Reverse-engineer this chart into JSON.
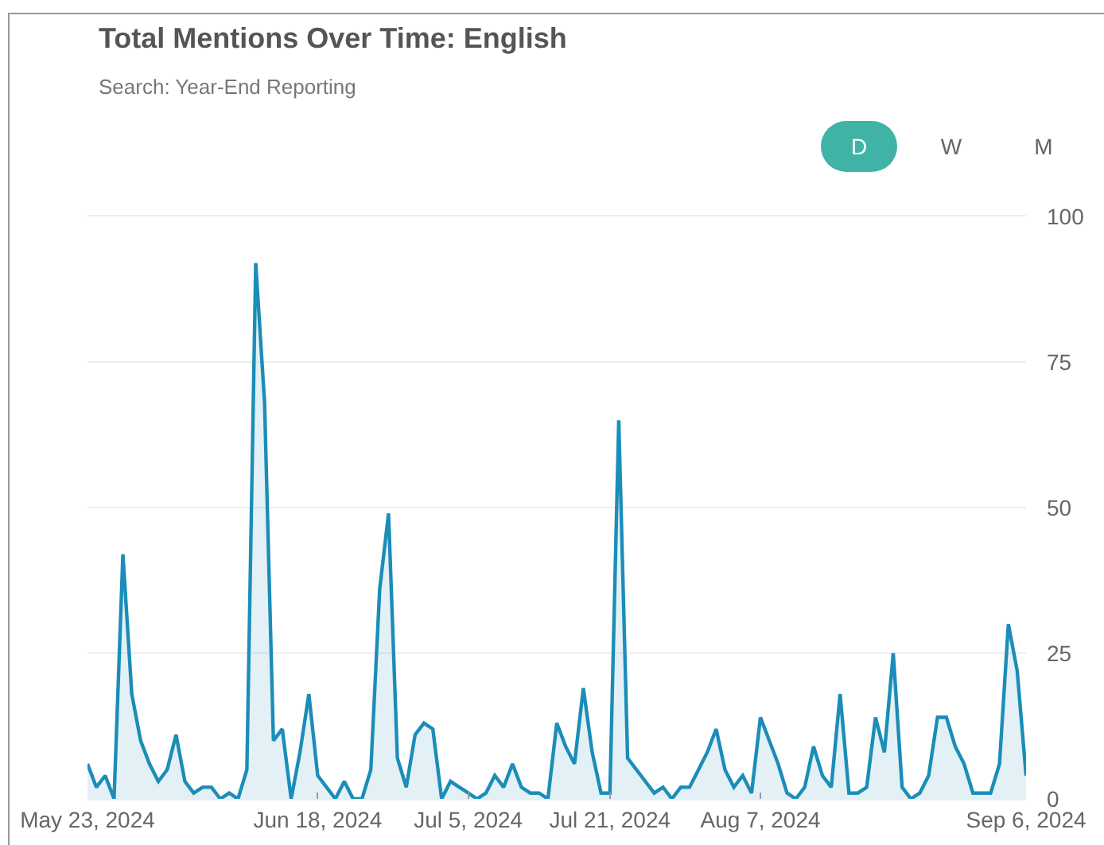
{
  "chart_data": {
    "type": "area",
    "title": "Total Mentions Over Time: English",
    "subtitle": "Search: Year-End Reporting",
    "annotations": [
      "D",
      "W",
      "M"
    ],
    "x": [
      "2024-05-23",
      "2024-05-24",
      "2024-05-25",
      "2024-05-26",
      "2024-05-27",
      "2024-05-28",
      "2024-05-29",
      "2024-05-30",
      "2024-05-31",
      "2024-06-01",
      "2024-06-02",
      "2024-06-03",
      "2024-06-04",
      "2024-06-05",
      "2024-06-06",
      "2024-06-07",
      "2024-06-08",
      "2024-06-09",
      "2024-06-10",
      "2024-06-11",
      "2024-06-12",
      "2024-06-13",
      "2024-06-14",
      "2024-06-15",
      "2024-06-16",
      "2024-06-17",
      "2024-06-18",
      "2024-06-19",
      "2024-06-20",
      "2024-06-21",
      "2024-06-22",
      "2024-06-23",
      "2024-06-24",
      "2024-06-25",
      "2024-06-26",
      "2024-06-27",
      "2024-06-28",
      "2024-06-29",
      "2024-06-30",
      "2024-07-01",
      "2024-07-02",
      "2024-07-03",
      "2024-07-04",
      "2024-07-05",
      "2024-07-06",
      "2024-07-07",
      "2024-07-08",
      "2024-07-09",
      "2024-07-10",
      "2024-07-11",
      "2024-07-12",
      "2024-07-13",
      "2024-07-14",
      "2024-07-15",
      "2024-07-16",
      "2024-07-17",
      "2024-07-18",
      "2024-07-19",
      "2024-07-20",
      "2024-07-21",
      "2024-07-22",
      "2024-07-23",
      "2024-07-24",
      "2024-07-25",
      "2024-07-26",
      "2024-07-27",
      "2024-07-28",
      "2024-07-29",
      "2024-07-30",
      "2024-07-31",
      "2024-08-01",
      "2024-08-02",
      "2024-08-03",
      "2024-08-04",
      "2024-08-05",
      "2024-08-06",
      "2024-08-07",
      "2024-08-08",
      "2024-08-09",
      "2024-08-10",
      "2024-08-11",
      "2024-08-12",
      "2024-08-13",
      "2024-08-14",
      "2024-08-15",
      "2024-08-16",
      "2024-08-17",
      "2024-08-18",
      "2024-08-19",
      "2024-08-20",
      "2024-08-21",
      "2024-08-22",
      "2024-08-23",
      "2024-08-24",
      "2024-08-25",
      "2024-08-26",
      "2024-08-27",
      "2024-08-28",
      "2024-08-29",
      "2024-08-30",
      "2024-08-31",
      "2024-09-01",
      "2024-09-02",
      "2024-09-03",
      "2024-09-04",
      "2024-09-05",
      "2024-09-06"
    ],
    "series": [
      {
        "color": "#1b8db8",
        "values": [
          6,
          2,
          4,
          0,
          42,
          18,
          10,
          6,
          3,
          5,
          11,
          3,
          1,
          2,
          2,
          0,
          1,
          0,
          5,
          92,
          68,
          10,
          12,
          0,
          8,
          18,
          4,
          2,
          0,
          3,
          0,
          0,
          5,
          36,
          49,
          7,
          2,
          11,
          13,
          12,
          0,
          3,
          2,
          1,
          0,
          1,
          4,
          2,
          6,
          2,
          1,
          1,
          0,
          13,
          9,
          6,
          19,
          8,
          1,
          1,
          65,
          7,
          5,
          3,
          1,
          2,
          0,
          2,
          2,
          5,
          8,
          12,
          5,
          2,
          4,
          1,
          14,
          10,
          6,
          1,
          0,
          2,
          9,
          4,
          2,
          18,
          1,
          1,
          2,
          14,
          8,
          25,
          2,
          0,
          1,
          4,
          14,
          14,
          9,
          6,
          1,
          1,
          1,
          6,
          30,
          22,
          4
        ]
      }
    ],
    "xlim": [
      "2024-05-23",
      "2024-09-06"
    ],
    "xticks": [
      {
        "value": "2024-05-23",
        "label": "May 23, 2024"
      },
      {
        "value": "2024-06-18",
        "label": "Jun 18, 2024"
      },
      {
        "value": "2024-07-05",
        "label": "Jul 5, 2024"
      },
      {
        "value": "2024-07-21",
        "label": "Jul 21, 2024"
      },
      {
        "value": "2024-08-07",
        "label": "Aug 7, 2024"
      },
      {
        "value": "2024-09-06",
        "label": "Sep 6, 2024"
      }
    ],
    "ylim": [
      0,
      100
    ],
    "yticks": [
      0,
      25,
      50,
      75,
      100
    ],
    "grid": "y",
    "marker": "none",
    "line_style": "solid"
  }
}
